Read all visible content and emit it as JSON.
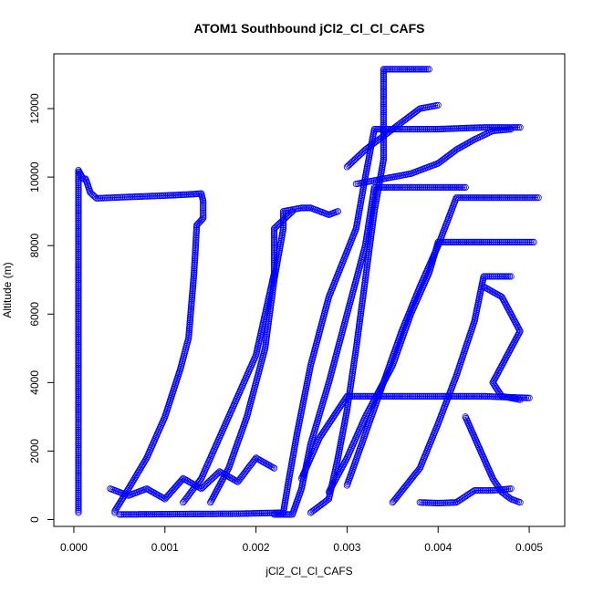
{
  "chart_data": {
    "type": "scatter",
    "title": "ATOM1 Southbound jCl2_Cl_Cl_CAFS",
    "xlabel": "jCl2_Cl_Cl_CAFS",
    "ylabel": "Altitude (m)",
    "xlim": [
      -0.00022,
      0.00539
    ],
    "ylim": [
      -200,
      13600
    ],
    "x_ticks": [
      0.0,
      0.001,
      0.002,
      0.003,
      0.004,
      0.005
    ],
    "x_tick_labels": [
      "0.000",
      "0.001",
      "0.002",
      "0.003",
      "0.004",
      "0.005"
    ],
    "y_ticks": [
      0,
      2000,
      4000,
      6000,
      8000,
      10000,
      12000
    ],
    "y_tick_labels": [
      "0",
      "2000",
      "4000",
      "6000",
      "8000",
      "10000",
      "12000"
    ],
    "grid": false,
    "legend": "none",
    "marker": "open-circle",
    "connected": true,
    "series_color": "#0000ff",
    "series": [
      {
        "points": [
          [
            5e-05,
            200
          ],
          [
            5e-05,
            3000
          ],
          [
            5e-05,
            6000
          ],
          [
            5e-05,
            9000
          ],
          [
            5e-05,
            10200
          ],
          [
            0.0001,
            9950
          ],
          [
            0.00013,
            9950
          ],
          [
            0.00018,
            9550
          ],
          [
            0.00025,
            9380
          ],
          [
            0.0006,
            9420
          ],
          [
            0.001,
            9460
          ],
          [
            0.0013,
            9500
          ],
          [
            0.0014,
            9520
          ],
          [
            0.00142,
            9300
          ],
          [
            0.00142,
            8800
          ],
          [
            0.00135,
            8600
          ],
          [
            0.00132,
            7200
          ],
          [
            0.00126,
            5300
          ],
          [
            0.00117,
            4400
          ],
          [
            0.001,
            3000
          ],
          [
            0.0008,
            1800
          ],
          [
            0.0006,
            900
          ],
          [
            0.00045,
            250
          ],
          [
            0.00045,
            200
          ]
        ]
      },
      {
        "points": [
          [
            0.0005,
            150
          ],
          [
            0.0012,
            160
          ],
          [
            0.0018,
            170
          ],
          [
            0.0023,
            200
          ],
          [
            0.00235,
            1000
          ],
          [
            0.00245,
            2500
          ],
          [
            0.0026,
            4500
          ],
          [
            0.0028,
            6500
          ],
          [
            0.0031,
            8500
          ],
          [
            0.0032,
            10000
          ],
          [
            0.0033,
            11400
          ],
          [
            0.0036,
            11400
          ],
          [
            0.004,
            11400
          ],
          [
            0.0045,
            11450
          ],
          [
            0.0049,
            11450
          ]
        ]
      },
      {
        "points": [
          [
            0.0022,
            150
          ],
          [
            0.0024,
            150
          ],
          [
            0.0025,
            900
          ],
          [
            0.0026,
            2200
          ],
          [
            0.0028,
            4000
          ],
          [
            0.003,
            6000
          ],
          [
            0.0032,
            8000
          ],
          [
            0.0033,
            9700
          ],
          [
            0.0036,
            9700
          ],
          [
            0.004,
            9700
          ],
          [
            0.0043,
            9700
          ]
        ]
      },
      {
        "points": [
          [
            0.0026,
            200
          ],
          [
            0.0028,
            600
          ],
          [
            0.0029,
            1800
          ],
          [
            0.003,
            3200
          ],
          [
            0.0031,
            5000
          ],
          [
            0.0032,
            7000
          ],
          [
            0.0033,
            9000
          ],
          [
            0.0034,
            10500
          ],
          [
            0.0034,
            12000
          ],
          [
            0.0034,
            13150
          ],
          [
            0.0036,
            13150
          ],
          [
            0.0039,
            13150
          ]
        ]
      },
      {
        "points": [
          [
            0.0015,
            500
          ],
          [
            0.0017,
            1500
          ],
          [
            0.0019,
            3000
          ],
          [
            0.0021,
            5000
          ],
          [
            0.0022,
            7000
          ],
          [
            0.0023,
            8500
          ],
          [
            0.0023,
            9000
          ],
          [
            0.0025,
            9100
          ],
          [
            0.0026,
            9100
          ],
          [
            0.0028,
            8900
          ],
          [
            0.0029,
            9000
          ]
        ]
      },
      {
        "points": [
          [
            0.0012,
            500
          ],
          [
            0.0014,
            1200
          ],
          [
            0.0016,
            2400
          ],
          [
            0.0018,
            3600
          ],
          [
            0.002,
            4800
          ],
          [
            0.0021,
            6000
          ],
          [
            0.0022,
            7200
          ],
          [
            0.0022,
            8500
          ],
          [
            0.0024,
            9000
          ]
        ]
      },
      {
        "points": [
          [
            0.003,
            1000
          ],
          [
            0.0032,
            2500
          ],
          [
            0.0034,
            4000
          ],
          [
            0.0036,
            5500
          ],
          [
            0.0038,
            6800
          ],
          [
            0.004,
            8000
          ],
          [
            0.0042,
            9400
          ],
          [
            0.0047,
            9400
          ],
          [
            0.0051,
            9400
          ]
        ]
      },
      {
        "points": [
          [
            0.0028,
            800
          ],
          [
            0.003,
            1800
          ],
          [
            0.0032,
            3000
          ],
          [
            0.0035,
            4500
          ],
          [
            0.0037,
            6000
          ],
          [
            0.0039,
            7200
          ],
          [
            0.004,
            8100
          ],
          [
            0.0045,
            8100
          ],
          [
            0.0049,
            8100
          ],
          [
            0.00505,
            8100
          ]
        ]
      },
      {
        "points": [
          [
            0.0035,
            500
          ],
          [
            0.0038,
            1500
          ],
          [
            0.004,
            2800
          ],
          [
            0.0042,
            4200
          ],
          [
            0.0044,
            5800
          ],
          [
            0.0045,
            7100
          ],
          [
            0.0047,
            7100
          ],
          [
            0.0048,
            7100
          ]
        ]
      },
      {
        "points": [
          [
            0.0025,
            1200
          ],
          [
            0.0027,
            2400
          ],
          [
            0.003,
            3600
          ],
          [
            0.0033,
            3600
          ],
          [
            0.0036,
            3600
          ],
          [
            0.004,
            3600
          ],
          [
            0.0045,
            3600
          ],
          [
            0.005,
            3550
          ]
        ]
      },
      {
        "points": [
          [
            0.0004,
            900
          ],
          [
            0.0006,
            700
          ],
          [
            0.0008,
            900
          ],
          [
            0.001,
            600
          ],
          [
            0.0012,
            1200
          ],
          [
            0.0014,
            900
          ],
          [
            0.0016,
            1400
          ],
          [
            0.0018,
            1100
          ],
          [
            0.002,
            1800
          ],
          [
            0.0022,
            1500
          ]
        ]
      },
      {
        "points": [
          [
            0.0031,
            9800
          ],
          [
            0.0033,
            9900
          ],
          [
            0.0037,
            10100
          ],
          [
            0.004,
            10400
          ],
          [
            0.0042,
            10800
          ],
          [
            0.0044,
            11100
          ],
          [
            0.0046,
            11350
          ],
          [
            0.0048,
            11400
          ]
        ]
      },
      {
        "points": [
          [
            0.003,
            10300
          ],
          [
            0.0032,
            10800
          ],
          [
            0.0034,
            11200
          ],
          [
            0.0036,
            11600
          ],
          [
            0.0038,
            12000
          ],
          [
            0.004,
            12100
          ]
        ]
      },
      {
        "points": [
          [
            0.0038,
            500
          ],
          [
            0.004,
            480
          ],
          [
            0.0042,
            500
          ],
          [
            0.0044,
            850
          ],
          [
            0.0046,
            850
          ],
          [
            0.0048,
            900
          ]
        ]
      },
      {
        "points": [
          [
            0.0043,
            3000
          ],
          [
            0.0044,
            2400
          ],
          [
            0.0045,
            1800
          ],
          [
            0.0046,
            1200
          ],
          [
            0.0047,
            800
          ],
          [
            0.0048,
            600
          ],
          [
            0.0049,
            500
          ]
        ]
      },
      {
        "points": [
          [
            0.0045,
            6800
          ],
          [
            0.0047,
            6500
          ],
          [
            0.0048,
            6000
          ],
          [
            0.0049,
            5500
          ],
          [
            0.0048,
            5000
          ],
          [
            0.0047,
            4500
          ],
          [
            0.0046,
            4000
          ],
          [
            0.0047,
            3600
          ],
          [
            0.0049,
            3500
          ]
        ]
      }
    ]
  }
}
